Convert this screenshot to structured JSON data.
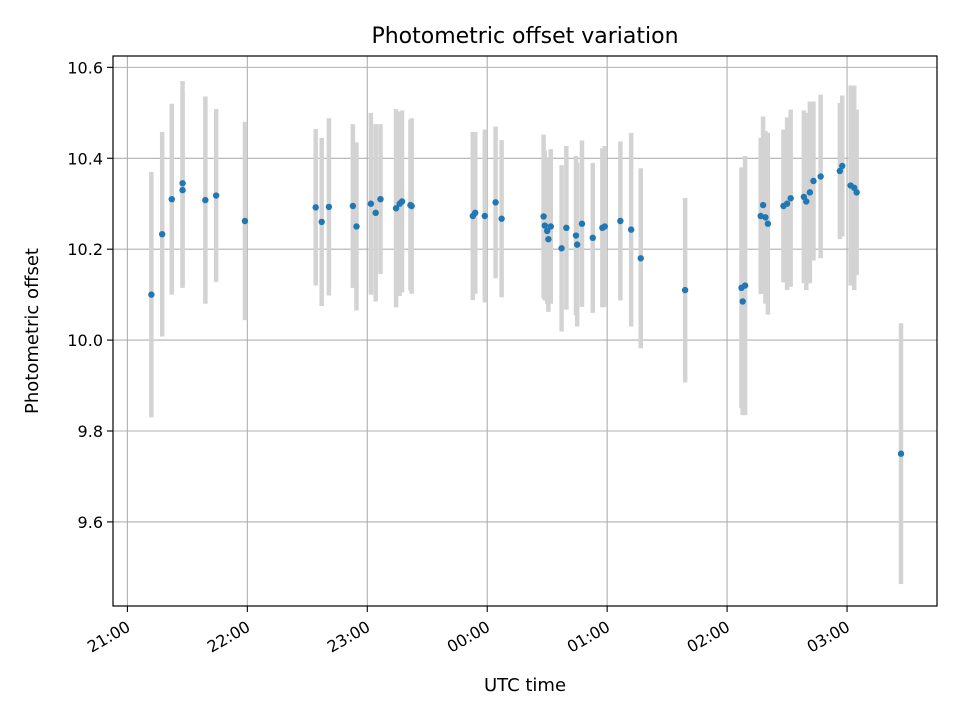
{
  "chart_data": {
    "type": "scatter",
    "title": "Photometric offset variation",
    "xlabel": "UTC time",
    "ylabel": "Photometric offset",
    "x_unit": "hours since 00:00 UTC",
    "xlim": [
      -3.12,
      3.75
    ],
    "ylim": [
      9.415,
      10.625
    ],
    "x_ticks": [
      {
        "value": -3,
        "label": "21:00"
      },
      {
        "value": -2,
        "label": "22:00"
      },
      {
        "value": -1,
        "label": "23:00"
      },
      {
        "value": 0,
        "label": "00:00"
      },
      {
        "value": 1,
        "label": "01:00"
      },
      {
        "value": 2,
        "label": "02:00"
      },
      {
        "value": 3,
        "label": "03:00"
      }
    ],
    "y_ticks": [
      {
        "value": 9.6,
        "label": "9.6"
      },
      {
        "value": 9.8,
        "label": "9.8"
      },
      {
        "value": 10.0,
        "label": "10.0"
      },
      {
        "value": 10.2,
        "label": "10.2"
      },
      {
        "value": 10.4,
        "label": "10.4"
      },
      {
        "value": 10.6,
        "label": "10.6"
      }
    ],
    "grid": true,
    "colors": {
      "point": "#1f77b4",
      "errorbar": "#d3d3d3",
      "grid": "#b0b0b0"
    },
    "points": [
      {
        "x": -2.8,
        "y": 10.1,
        "err": 0.27
      },
      {
        "x": -2.71,
        "y": 10.233,
        "err": 0.225
      },
      {
        "x": -2.63,
        "y": 10.31,
        "err": 0.21
      },
      {
        "x": -2.54,
        "y": 10.33,
        "err": 0.215
      },
      {
        "x": -2.54,
        "y": 10.345,
        "err": 0.225
      },
      {
        "x": -2.35,
        "y": 10.308,
        "err": 0.228
      },
      {
        "x": -2.26,
        "y": 10.318,
        "err": 0.19
      },
      {
        "x": -2.02,
        "y": 10.262,
        "err": 0.218
      },
      {
        "x": -1.43,
        "y": 10.292,
        "err": 0.172
      },
      {
        "x": -1.38,
        "y": 10.26,
        "err": 0.185
      },
      {
        "x": -1.32,
        "y": 10.293,
        "err": 0.195
      },
      {
        "x": -1.12,
        "y": 10.295,
        "err": 0.18
      },
      {
        "x": -1.09,
        "y": 10.25,
        "err": 0.185
      },
      {
        "x": -0.97,
        "y": 10.3,
        "err": 0.2
      },
      {
        "x": -0.93,
        "y": 10.28,
        "err": 0.195
      },
      {
        "x": -0.89,
        "y": 10.31,
        "err": 0.165
      },
      {
        "x": -0.76,
        "y": 10.29,
        "err": 0.218
      },
      {
        "x": -0.73,
        "y": 10.3,
        "err": 0.203
      },
      {
        "x": -0.71,
        "y": 10.305,
        "err": 0.2
      },
      {
        "x": -0.64,
        "y": 10.297,
        "err": 0.188
      },
      {
        "x": -0.63,
        "y": 10.295,
        "err": 0.193
      },
      {
        "x": -0.12,
        "y": 10.273,
        "err": 0.185
      },
      {
        "x": -0.1,
        "y": 10.28,
        "err": 0.178
      },
      {
        "x": -0.02,
        "y": 10.273,
        "err": 0.19
      },
      {
        "x": 0.07,
        "y": 10.303,
        "err": 0.167
      },
      {
        "x": 0.12,
        "y": 10.267,
        "err": 0.173
      },
      {
        "x": 0.47,
        "y": 10.272,
        "err": 0.18
      },
      {
        "x": 0.48,
        "y": 10.252,
        "err": 0.165
      },
      {
        "x": 0.5,
        "y": 10.24,
        "err": 0.16
      },
      {
        "x": 0.51,
        "y": 10.222,
        "err": 0.16
      },
      {
        "x": 0.53,
        "y": 10.25,
        "err": 0.17
      },
      {
        "x": 0.62,
        "y": 10.202,
        "err": 0.183
      },
      {
        "x": 0.66,
        "y": 10.247,
        "err": 0.18
      },
      {
        "x": 0.74,
        "y": 10.23,
        "err": 0.175
      },
      {
        "x": 0.75,
        "y": 10.21,
        "err": 0.18
      },
      {
        "x": 0.79,
        "y": 10.256,
        "err": 0.183
      },
      {
        "x": 0.88,
        "y": 10.225,
        "err": 0.165
      },
      {
        "x": 0.96,
        "y": 10.247,
        "err": 0.175
      },
      {
        "x": 0.98,
        "y": 10.25,
        "err": 0.177
      },
      {
        "x": 1.11,
        "y": 10.262,
        "err": 0.175
      },
      {
        "x": 1.2,
        "y": 10.243,
        "err": 0.213
      },
      {
        "x": 1.28,
        "y": 10.18,
        "err": 0.198
      },
      {
        "x": 1.65,
        "y": 10.11,
        "err": 0.203
      },
      {
        "x": 2.12,
        "y": 10.115,
        "err": 0.265
      },
      {
        "x": 2.13,
        "y": 10.085,
        "err": 0.25
      },
      {
        "x": 2.15,
        "y": 10.12,
        "err": 0.285
      },
      {
        "x": 2.28,
        "y": 10.273,
        "err": 0.172
      },
      {
        "x": 2.3,
        "y": 10.297,
        "err": 0.195
      },
      {
        "x": 2.32,
        "y": 10.27,
        "err": 0.19
      },
      {
        "x": 2.34,
        "y": 10.256,
        "err": 0.2
      },
      {
        "x": 2.47,
        "y": 10.295,
        "err": 0.168
      },
      {
        "x": 2.5,
        "y": 10.3,
        "err": 0.19
      },
      {
        "x": 2.53,
        "y": 10.312,
        "err": 0.195
      },
      {
        "x": 2.64,
        "y": 10.315,
        "err": 0.19
      },
      {
        "x": 2.66,
        "y": 10.305,
        "err": 0.195
      },
      {
        "x": 2.69,
        "y": 10.325,
        "err": 0.2
      },
      {
        "x": 2.72,
        "y": 10.35,
        "err": 0.175
      },
      {
        "x": 2.78,
        "y": 10.36,
        "err": 0.18
      },
      {
        "x": 2.94,
        "y": 10.372,
        "err": 0.15
      },
      {
        "x": 2.96,
        "y": 10.383,
        "err": 0.155
      },
      {
        "x": 3.03,
        "y": 10.34,
        "err": 0.22
      },
      {
        "x": 3.06,
        "y": 10.335,
        "err": 0.225
      },
      {
        "x": 3.08,
        "y": 10.325,
        "err": 0.182
      },
      {
        "x": 3.45,
        "y": 9.75,
        "err": 0.287
      }
    ]
  }
}
